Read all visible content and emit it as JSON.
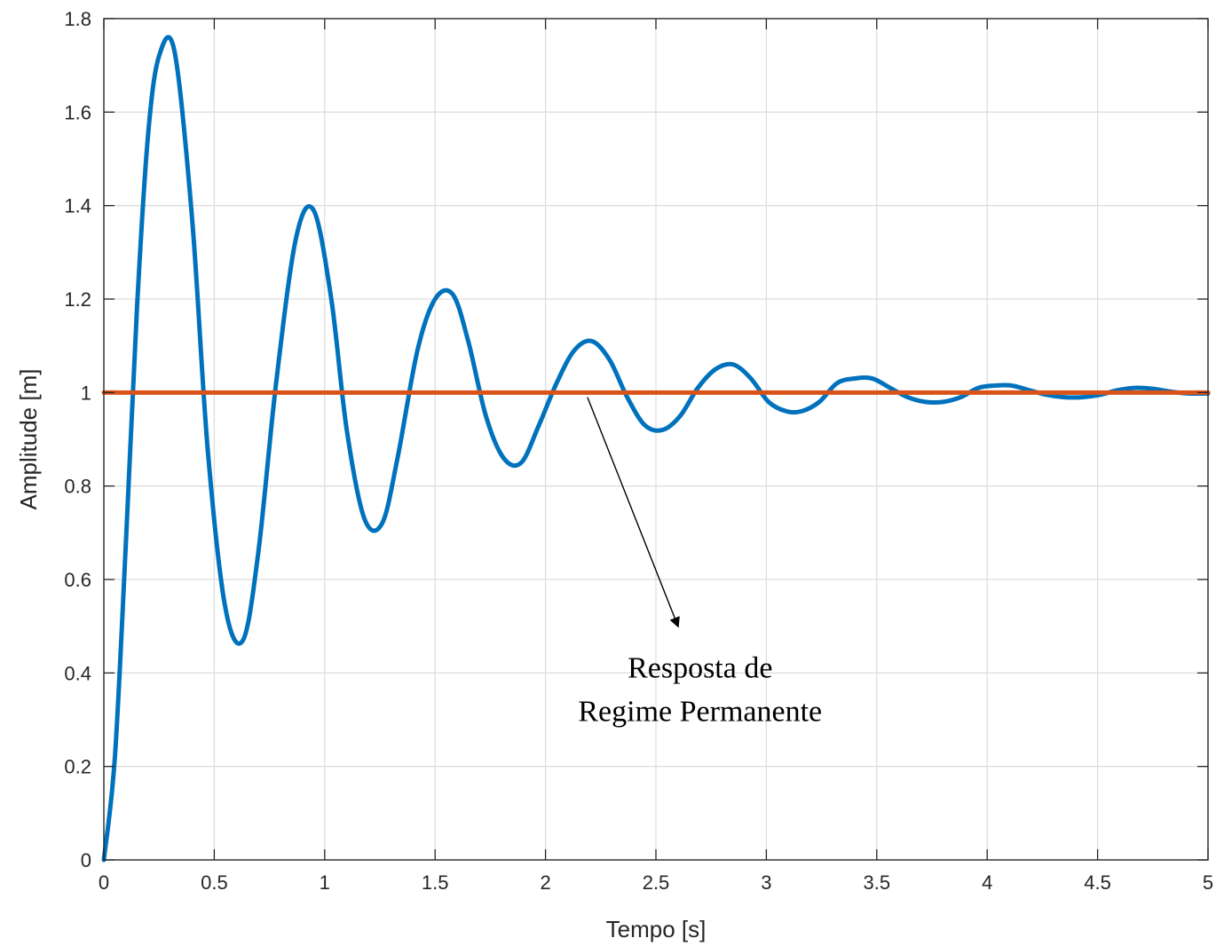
{
  "chart_data": {
    "type": "line",
    "title": "",
    "xlabel": "Tempo [s]",
    "ylabel": "Amplitude [m]",
    "xlim": [
      0,
      5
    ],
    "ylim": [
      0,
      1.8
    ],
    "grid": true,
    "x_ticks": [
      0,
      0.5,
      1,
      1.5,
      2,
      2.5,
      3,
      3.5,
      4,
      4.5,
      5
    ],
    "x_tick_labels": [
      "0",
      "0.5",
      "1",
      "1.5",
      "2",
      "2.5",
      "3",
      "3.5",
      "4",
      "4.5",
      "5"
    ],
    "y_ticks": [
      0,
      0.2,
      0.4,
      0.6,
      0.8,
      1,
      1.2,
      1.4,
      1.6,
      1.8
    ],
    "y_tick_labels": [
      "0",
      "0.2",
      "0.4",
      "0.6",
      "0.8",
      "1",
      "1.2",
      "1.4",
      "1.6",
      "1.8"
    ],
    "series": [
      {
        "color": "#0072BD",
        "x": [
          0,
          0.05,
          0.1,
          0.15,
          0.2,
          0.25,
          0.32,
          0.4,
          0.47,
          0.55,
          0.63,
          0.7,
          0.78,
          0.87,
          0.95,
          1.03,
          1.1,
          1.18,
          1.26,
          1.33,
          1.42,
          1.5,
          1.58,
          1.65,
          1.73,
          1.81,
          1.89,
          1.97,
          2.05,
          2.13,
          2.21,
          2.29,
          2.37,
          2.45,
          2.53,
          2.61,
          2.69,
          2.77,
          2.85,
          2.93,
          3.01,
          3.09,
          3.16,
          3.24,
          3.32,
          3.4,
          3.48,
          3.56,
          3.64,
          3.72,
          3.8,
          3.88,
          3.96,
          4.04,
          4.11,
          4.19,
          4.27,
          4.35,
          4.43,
          4.51,
          4.59,
          4.67,
          4.75,
          4.83,
          4.91,
          5
        ],
        "y": [
          0,
          0.22,
          0.68,
          1.18,
          1.55,
          1.72,
          1.73,
          1.37,
          0.88,
          0.54,
          0.47,
          0.66,
          1.02,
          1.33,
          1.39,
          1.2,
          0.92,
          0.73,
          0.72,
          0.86,
          1.09,
          1.2,
          1.21,
          1.11,
          0.95,
          0.86,
          0.85,
          0.93,
          1.02,
          1.09,
          1.11,
          1.07,
          0.99,
          0.93,
          0.92,
          0.95,
          1.01,
          1.05,
          1.06,
          1.03,
          0.98,
          0.96,
          0.96,
          0.98,
          1.02,
          1.03,
          1.03,
          1.01,
          0.99,
          0.98,
          0.98,
          0.99,
          1.01,
          1.015,
          1.015,
          1.005,
          0.995,
          0.99,
          0.99,
          0.995,
          1.005,
          1.01,
          1.008,
          1.002,
          0.998,
          0.998
        ]
      },
      {
        "color": "#D95319",
        "x": [
          0,
          5
        ],
        "y": [
          1,
          1
        ]
      }
    ],
    "annotation": {
      "lines": [
        "Resposta de",
        "Regime Permanente"
      ],
      "arrow_from": [
        2.19,
        0.99
      ],
      "arrow_to": [
        2.6,
        0.5
      ],
      "text_anchor": [
        2.7,
        0.39
      ]
    }
  }
}
